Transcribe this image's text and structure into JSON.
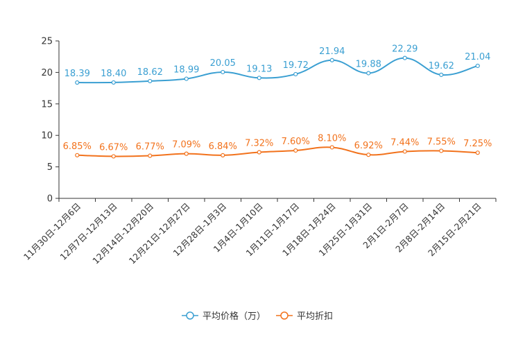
{
  "colors": {
    "series1": "#3a9fd2",
    "series2": "#f2721c",
    "axis": "#333333",
    "tick": "#666666"
  },
  "chart_data": {
    "type": "line",
    "title": "",
    "xlabel": "",
    "ylabel": "",
    "ylim": [
      0,
      25
    ],
    "yticks": [
      0,
      5,
      10,
      15,
      20,
      25
    ],
    "grid": false,
    "legend_position": "bottom-center",
    "categories": [
      "11月30日-12月6日",
      "12月7日-12月13日",
      "12月14日-12月20日",
      "12月21日-12月27日",
      "12月28日-1月3日",
      "1月4日-1月10日",
      "1月11日-1月17日",
      "1月18日-1月24日",
      "1月25日-1月31日",
      "2月1日-2月7日",
      "2月8日-2月14日",
      "2月15日-2月21日"
    ],
    "series": [
      {
        "name": "平均价格（万）",
        "color": "#3a9fd2",
        "values": [
          18.39,
          18.4,
          18.62,
          18.99,
          20.05,
          19.13,
          19.72,
          21.94,
          19.88,
          22.29,
          19.62,
          21.04
        ],
        "labels": [
          "18.39",
          "18.40",
          "18.62",
          "18.99",
          "20.05",
          "19.13",
          "19.72",
          "21.94",
          "19.88",
          "22.29",
          "19.62",
          "21.04"
        ]
      },
      {
        "name": "平均折扣",
        "color": "#f2721c",
        "values": [
          6.85,
          6.67,
          6.77,
          7.09,
          6.84,
          7.32,
          7.6,
          8.1,
          6.92,
          7.44,
          7.55,
          7.25
        ],
        "labels": [
          "6.85%",
          "6.67%",
          "6.77%",
          "7.09%",
          "6.84%",
          "7.32%",
          "7.60%",
          "8.10%",
          "6.92%",
          "7.44%",
          "7.55%",
          "7.25%"
        ]
      }
    ]
  }
}
